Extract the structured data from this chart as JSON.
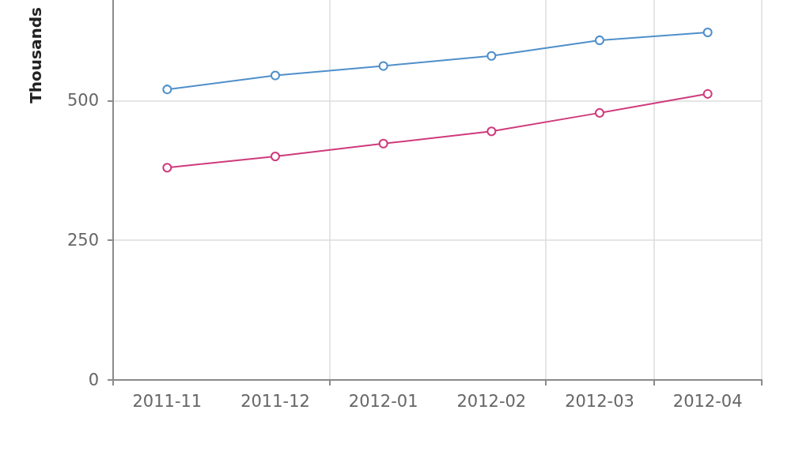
{
  "chart_data": {
    "type": "line",
    "ylabel": "Thousands",
    "categories": [
      "2011-11",
      "2011-12",
      "2012-01",
      "2012-02",
      "2012-03",
      "2012-04"
    ],
    "series": [
      {
        "color": "#4f8fca",
        "values": [
          520,
          545,
          562,
          580,
          608,
          622
        ]
      },
      {
        "color": "#cf3a7c",
        "values": [
          380,
          400,
          423,
          445,
          478,
          512
        ]
      }
    ],
    "ylim": [
      0,
      680
    ],
    "yticks": [
      0,
      250,
      500
    ],
    "grid": true,
    "marker": "circle",
    "line_style": "solid"
  }
}
